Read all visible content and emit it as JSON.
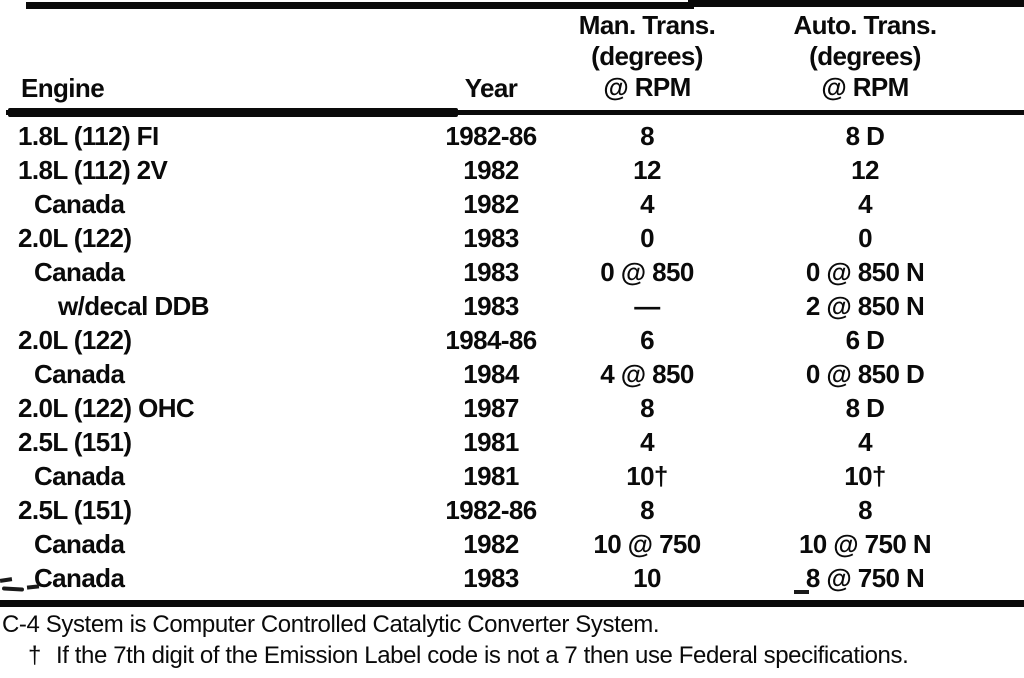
{
  "colors": {
    "ink": "#0a0a0a",
    "paper": "#ffffff"
  },
  "table": {
    "headers": {
      "engine": "Engine",
      "year": "Year",
      "man_trans": {
        "line1": "Man. Trans.",
        "line2": "(degrees)",
        "line3": "@ RPM"
      },
      "auto_trans": {
        "line1": "Auto. Trans.",
        "line2": "(degrees)",
        "line3": "@ RPM"
      }
    },
    "rows": [
      {
        "engine": "1.8L (112) FI",
        "indent": 0,
        "year": "1982-86",
        "man_trans": "8",
        "auto_trans": "8 D"
      },
      {
        "engine": "1.8L (112) 2V",
        "indent": 0,
        "year": "1982",
        "man_trans": "12",
        "auto_trans": "12"
      },
      {
        "engine": "Canada",
        "indent": 1,
        "year": "1982",
        "man_trans": "4",
        "auto_trans": "4"
      },
      {
        "engine": "2.0L (122)",
        "indent": 0,
        "year": "1983",
        "man_trans": "0",
        "auto_trans": "0"
      },
      {
        "engine": "Canada",
        "indent": 1,
        "year": "1983",
        "man_trans": "0 @ 850",
        "auto_trans": "0 @ 850 N"
      },
      {
        "engine": "w/decal DDB",
        "indent": 2,
        "year": "1983",
        "man_trans": "—",
        "auto_trans": "2 @ 850 N"
      },
      {
        "engine": "2.0L (122)",
        "indent": 0,
        "year": "1984-86",
        "man_trans": "6",
        "auto_trans": "6 D"
      },
      {
        "engine": "Canada",
        "indent": 1,
        "year": "1984",
        "man_trans": "4 @ 850",
        "auto_trans": "0 @ 850 D"
      },
      {
        "engine": "2.0L (122) OHC",
        "indent": 0,
        "year": "1987",
        "man_trans": "8",
        "auto_trans": "8 D"
      },
      {
        "engine": "2.5L (151)",
        "indent": 0,
        "year": "1981",
        "man_trans": "4",
        "auto_trans": "4"
      },
      {
        "engine": "Canada",
        "indent": 1,
        "year": "1981",
        "man_trans": "10†",
        "auto_trans": "10†"
      },
      {
        "engine": "2.5L (151)",
        "indent": 0,
        "year": "1982-86",
        "man_trans": "8",
        "auto_trans": "8"
      },
      {
        "engine": "Canada",
        "indent": 1,
        "year": "1982",
        "man_trans": "10 @ 750",
        "auto_trans": "10 @ 750 N"
      },
      {
        "engine": "Canada",
        "indent": 1,
        "year": "1983",
        "man_trans": "10",
        "auto_trans": "8 @ 750 N"
      }
    ]
  },
  "footnotes": {
    "c4_note": "C-4 System is Computer Controlled Catalytic Converter System.",
    "dagger_marker": "†",
    "dagger_note": "If the 7th digit of the Emission Label code is not a 7 then use Federal specifications."
  }
}
